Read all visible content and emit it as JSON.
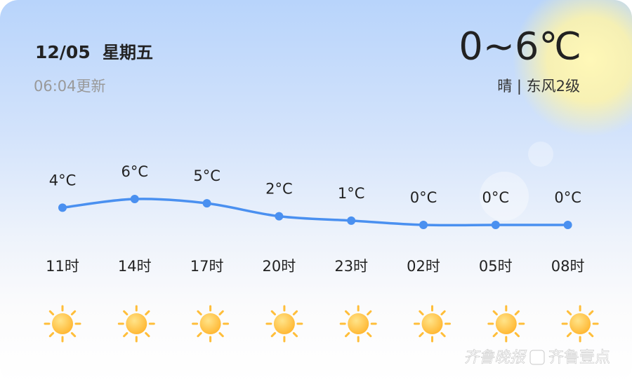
{
  "header": {
    "date": "12/05",
    "weekday": "星期五",
    "updated": "06:04更新",
    "temp_range": "0~6℃",
    "condition": "晴 | 东风2级"
  },
  "chart_data": {
    "type": "line",
    "categories": [
      "11时",
      "14时",
      "17时",
      "20时",
      "23时",
      "02时",
      "05时",
      "08时"
    ],
    "values": [
      4,
      6,
      5,
      2,
      1,
      0,
      0,
      0
    ],
    "value_labels": [
      "4°C",
      "6°C",
      "5°C",
      "2°C",
      "1°C",
      "0°C",
      "0°C",
      "0°C"
    ],
    "color": "#4a90f0",
    "ylim": [
      0,
      6
    ]
  },
  "watermark": {
    "left": "齐鲁晚报",
    "right": "齐鲁壹点"
  }
}
